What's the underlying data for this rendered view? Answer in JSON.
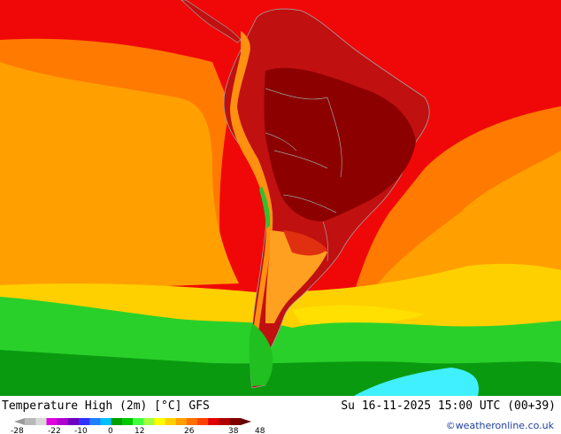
{
  "header": {
    "title": "Temperature High (2m) [°C] GFS",
    "datetime": "Su 16-11-2025 15:00 UTC (00+39)",
    "credit": "©weatheronline.co.uk"
  },
  "legend": {
    "ticks": [
      "-28",
      "-22",
      "-10",
      "0",
      "12",
      "26",
      "38",
      "48"
    ],
    "colors": [
      "#9a9a9a",
      "#b8b8b8",
      "#d8d8d8",
      "#e000e0",
      "#b000d0",
      "#7000c0",
      "#3030ff",
      "#2080ff",
      "#00c0ff",
      "#00a000",
      "#00c800",
      "#40ff40",
      "#a0ff40",
      "#ffff00",
      "#ffd000",
      "#ffa000",
      "#ff7000",
      "#ff4000",
      "#e00000",
      "#b00000",
      "#800000",
      "#600000"
    ]
  },
  "map_colors": {
    "ocean_tropical": "#f00808",
    "ocean_orange": "#ff8c00",
    "ocean_light_orange": "#ffa800",
    "ocean_yellow": "#ffd000",
    "ocean_green": "#2ad02a",
    "ocean_dark_green": "#0a9a10",
    "ocean_cyan": "#40f0ff",
    "land_hot": "#b01010",
    "land_very_hot": "#8c0000",
    "andes": "#ff9010",
    "borders": "#a0a0a0"
  }
}
